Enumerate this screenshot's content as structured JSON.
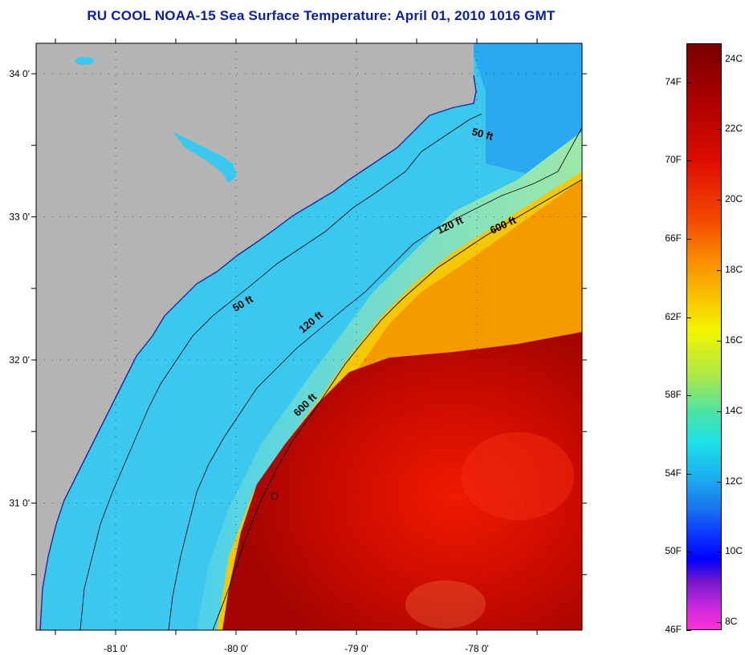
{
  "title": "RU COOL  NOAA-15  Sea Surface Temperature:  April 01, 2010 1016 GMT",
  "map": {
    "lat_labels": [
      {
        "label": "34 0'",
        "lat": 34.0
      },
      {
        "label": "33 0'",
        "lat": 33.0
      },
      {
        "label": "32 0'",
        "lat": 32.0
      },
      {
        "label": "31 0'",
        "lat": 31.0
      }
    ],
    "lon_labels": [
      {
        "label": "-81 0'",
        "lon": -81.0
      },
      {
        "label": "-80 0'",
        "lon": -80.0
      },
      {
        "label": "-79 0'",
        "lon": -79.0
      },
      {
        "label": "-78 0'",
        "lon": -78.0
      }
    ],
    "contour_labels": [
      "50 ft",
      "120 ft",
      "600 ft",
      "50 ft",
      "120 ft",
      "600 ft"
    ],
    "colors": {
      "land": "#b4b4b4",
      "cold_water": "#3cc8ee",
      "shelf_water": "#79e4d2",
      "warm_water": "#f59a00",
      "gulf_stream": "#c80a00"
    }
  },
  "colorbar": {
    "fahrenheit": [
      {
        "label": "74F",
        "value": 74
      },
      {
        "label": "70F",
        "value": 70
      },
      {
        "label": "66F",
        "value": 66
      },
      {
        "label": "62F",
        "value": 62
      },
      {
        "label": "58F",
        "value": 58
      },
      {
        "label": "54F",
        "value": 54
      },
      {
        "label": "50F",
        "value": 50
      },
      {
        "label": "46F",
        "value": 46
      }
    ],
    "celsius": [
      {
        "label": "24C",
        "value": 24
      },
      {
        "label": "22C",
        "value": 22
      },
      {
        "label": "20C",
        "value": 20
      },
      {
        "label": "18C",
        "value": 18
      },
      {
        "label": "16C",
        "value": 16
      },
      {
        "label": "14C",
        "value": 14
      },
      {
        "label": "12C",
        "value": 12
      },
      {
        "label": "10C",
        "value": 10
      },
      {
        "label": "8C",
        "value": 8
      }
    ]
  }
}
